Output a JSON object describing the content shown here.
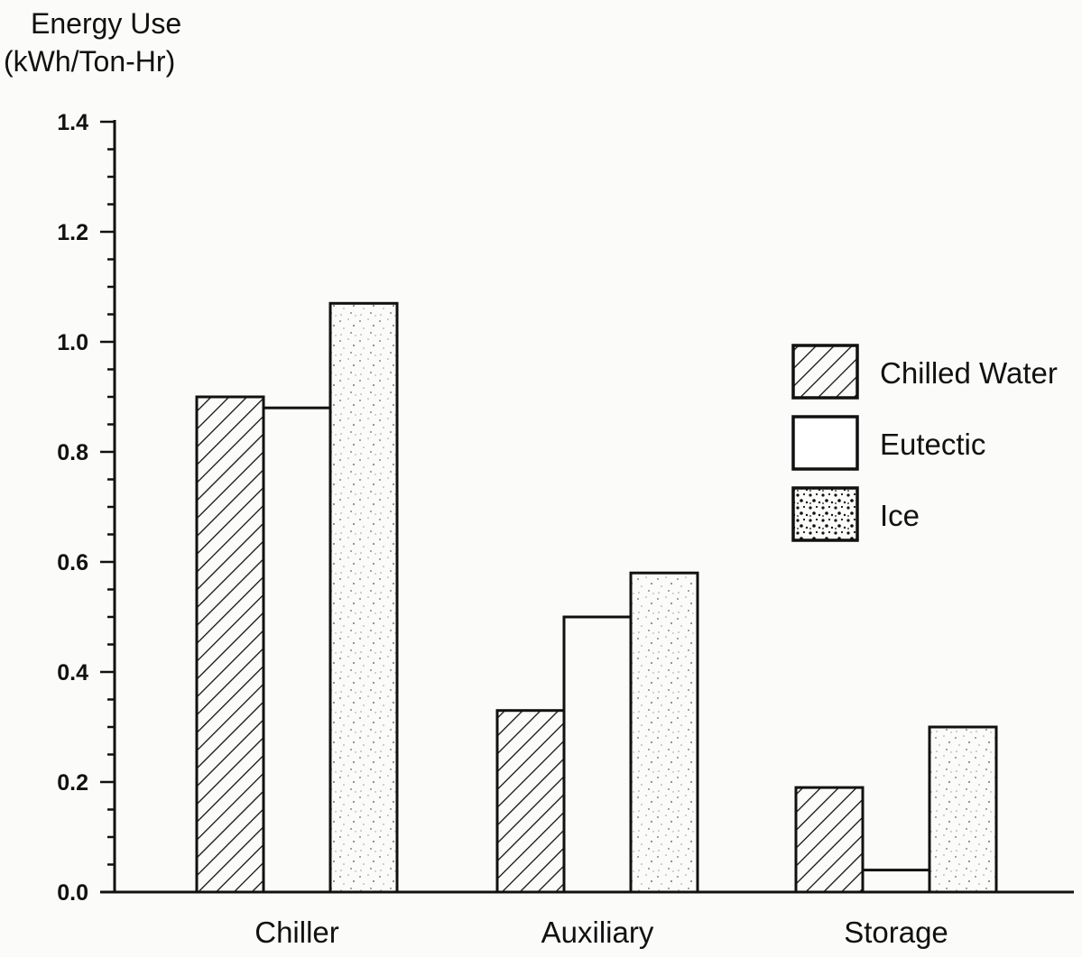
{
  "chart_data": {
    "type": "bar",
    "ylabel_line1": "Energy Use",
    "ylabel_line2": "(kWh/Ton-Hr)",
    "xlabel": "",
    "categories": [
      "Chiller",
      "Auxiliary",
      "Storage"
    ],
    "series": [
      {
        "name": "Chilled Water",
        "values": [
          0.9,
          0.33,
          0.19
        ],
        "pattern": "hatch"
      },
      {
        "name": "Eutectic",
        "values": [
          0.88,
          0.5,
          0.04
        ],
        "pattern": "plain"
      },
      {
        "name": "Ice",
        "values": [
          1.07,
          0.58,
          0.3
        ],
        "pattern": "stipple"
      }
    ],
    "ylim": [
      0.0,
      1.4
    ],
    "yticks": [
      "0.0",
      "0.2",
      "0.4",
      "0.6",
      "0.8",
      "1.0",
      "1.2",
      "1.4"
    ],
    "grid": false,
    "legend_position": "right",
    "colors": {
      "ink": "#111111",
      "paper": "#fbfbf9",
      "stipple": "#8a8a8a"
    }
  }
}
